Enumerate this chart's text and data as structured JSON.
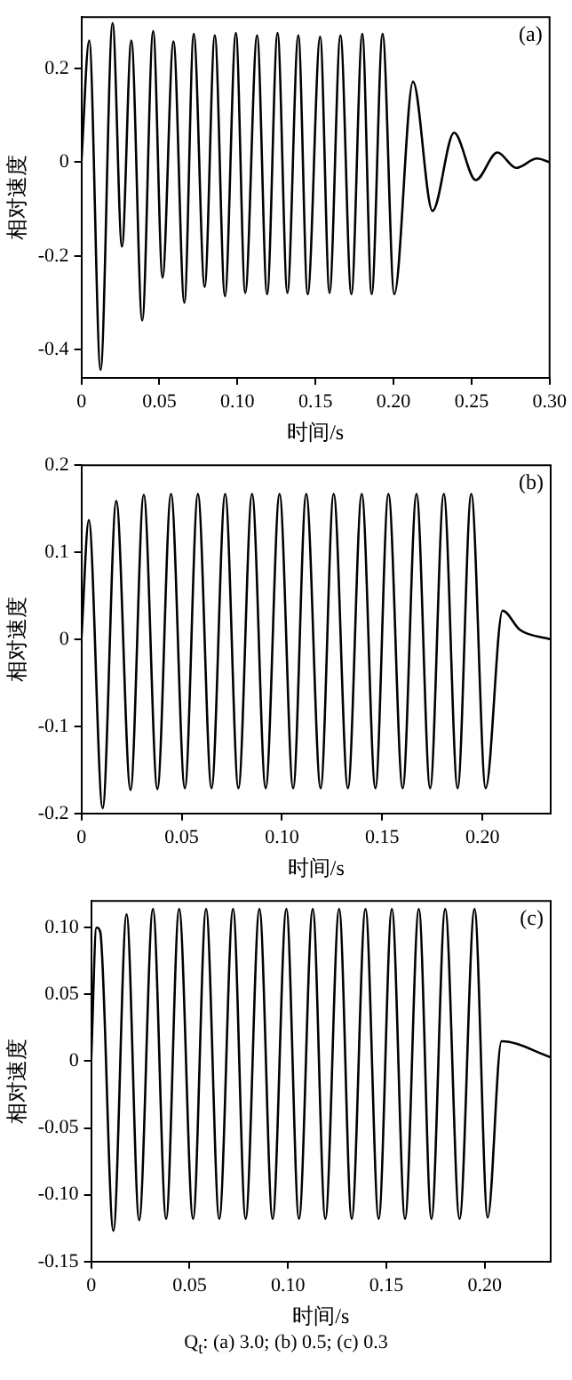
{
  "chart_data": [
    {
      "type": "line",
      "xlabel": "时间/s",
      "ylabel": "相对速度",
      "annotations": [
        "(a)"
      ],
      "xlim": [
        0,
        0.3
      ],
      "ylim": [
        -0.46,
        0.31
      ],
      "xticks": [
        0,
        0.05,
        {
          "value": 0.1,
          "label": "0.10"
        },
        0.15,
        {
          "value": 0.2,
          "label": "0.20"
        },
        0.25,
        {
          "value": 0.3,
          "label": "0.30"
        }
      ],
      "yticks": [
        -0.4,
        -0.2,
        0,
        0.2
      ],
      "grid": false,
      "legend": false,
      "marker": "none",
      "line_style": "solid",
      "series": [
        {
          "color": "#000000",
          "x": [
            0,
            0.005,
            0.0123,
            0.02,
            0.026,
            0.032,
            0.039,
            0.046,
            0.052,
            0.059,
            0.066,
            0.072,
            0.079,
            0.0855,
            0.092,
            0.099,
            0.105,
            0.1126,
            0.119,
            0.1257,
            0.132,
            0.139,
            0.145,
            0.153,
            0.159,
            0.166,
            0.173,
            0.18,
            0.186,
            0.193,
            0.2005,
            0.2125,
            0.225,
            0.2388,
            0.2527,
            0.2666,
            0.2786,
            0.292,
            0.3
          ],
          "values": [
            0,
            0.26,
            -0.443,
            0.297,
            -0.18,
            0.26,
            -0.338,
            0.28,
            -0.246,
            0.258,
            -0.3,
            0.274,
            -0.266,
            0.271,
            -0.286,
            0.276,
            -0.279,
            0.271,
            -0.282,
            0.276,
            -0.279,
            0.271,
            -0.282,
            0.268,
            -0.279,
            0.271,
            -0.282,
            0.274,
            -0.282,
            0.274,
            -0.282,
            0.172,
            -0.104,
            0.063,
            -0.038,
            0.021,
            -0.012,
            0.008,
            0
          ]
        }
      ]
    },
    {
      "type": "line",
      "xlabel": "时间/s",
      "ylabel": "相对速度",
      "annotations": [
        "(b)"
      ],
      "xlim": [
        0,
        0.234
      ],
      "ylim": [
        -0.2,
        0.2
      ],
      "xticks": [
        0,
        0.05,
        {
          "value": 0.1,
          "label": "0.10"
        },
        0.15,
        {
          "value": 0.2,
          "label": "0.20"
        }
      ],
      "yticks": [
        -0.2,
        -0.1,
        0,
        0.1,
        0.2
      ],
      "grid": false,
      "legend": false,
      "marker": "none",
      "line_style": "solid",
      "series": [
        {
          "color": "#000000",
          "x": [
            0,
            0.0037,
            0.0106,
            0.0174,
            0.0245,
            0.0311,
            0.0379,
            0.0447,
            0.0516,
            0.0581,
            0.0649,
            0.0717,
            0.0783,
            0.0851,
            0.0919,
            0.0988,
            0.1056,
            0.1121,
            0.1193,
            0.1258,
            0.1329,
            0.1398,
            0.1466,
            0.1531,
            0.1602,
            0.1671,
            0.1739,
            0.1807,
            0.1876,
            0.1944,
            0.2016,
            0.21,
            0.2186,
            0.234
          ],
          "values": [
            0,
            0.137,
            -0.194,
            0.159,
            -0.173,
            0.166,
            -0.172,
            0.167,
            -0.171,
            0.167,
            -0.171,
            0.167,
            -0.171,
            0.167,
            -0.171,
            0.167,
            -0.171,
            0.167,
            -0.171,
            0.167,
            -0.171,
            0.167,
            -0.171,
            0.167,
            -0.171,
            0.167,
            -0.171,
            0.167,
            -0.171,
            0.167,
            -0.171,
            0.033,
            0.011,
            0
          ]
        }
      ]
    },
    {
      "type": "line",
      "xlabel": "时间/s",
      "ylabel": "相对速度",
      "annotations": [
        "(c)",
        "Q$_{t}$: (a) 3.0; (b) 0.5; (c) 0.3"
      ],
      "xlim": [
        0,
        0.2335
      ],
      "ylim": [
        -0.15,
        0.12
      ],
      "xticks": [
        0,
        0.05,
        {
          "value": 0.1,
          "label": "0.10"
        },
        0.15,
        {
          "value": 0.2,
          "label": "0.20"
        }
      ],
      "yticks": [
        -0.15,
        {
          "value": -0.1,
          "label": "-0.10"
        },
        -0.05,
        0,
        0.05,
        {
          "value": 0.1,
          "label": "0.10"
        }
      ],
      "grid": false,
      "legend": false,
      "marker": "none",
      "line_style": "solid",
      "series": [
        {
          "color": "#000000",
          "x": [
            0,
            0.0027,
            0.0046,
            0.0113,
            0.018,
            0.0244,
            0.0314,
            0.0381,
            0.0447,
            0.0518,
            0.0584,
            0.0651,
            0.0721,
            0.0785,
            0.0855,
            0.0922,
            0.0992,
            0.1056,
            0.1126,
            0.119,
            0.126,
            0.1324,
            0.1394,
            0.1461,
            0.1528,
            0.1595,
            0.1665,
            0.1729,
            0.1799,
            0.1872,
            0.1948,
            0.2015,
            0.2085,
            0.2335
          ],
          "values": [
            0,
            0.1,
            0.097,
            -0.127,
            0.11,
            -0.119,
            0.114,
            -0.118,
            0.114,
            -0.118,
            0.114,
            -0.118,
            0.114,
            -0.118,
            0.114,
            -0.118,
            0.114,
            -0.118,
            0.114,
            -0.118,
            0.114,
            -0.118,
            0.114,
            -0.118,
            0.114,
            -0.118,
            0.114,
            -0.118,
            0.114,
            -0.118,
            0.114,
            -0.117,
            0.015,
            0.003
          ]
        }
      ]
    }
  ]
}
